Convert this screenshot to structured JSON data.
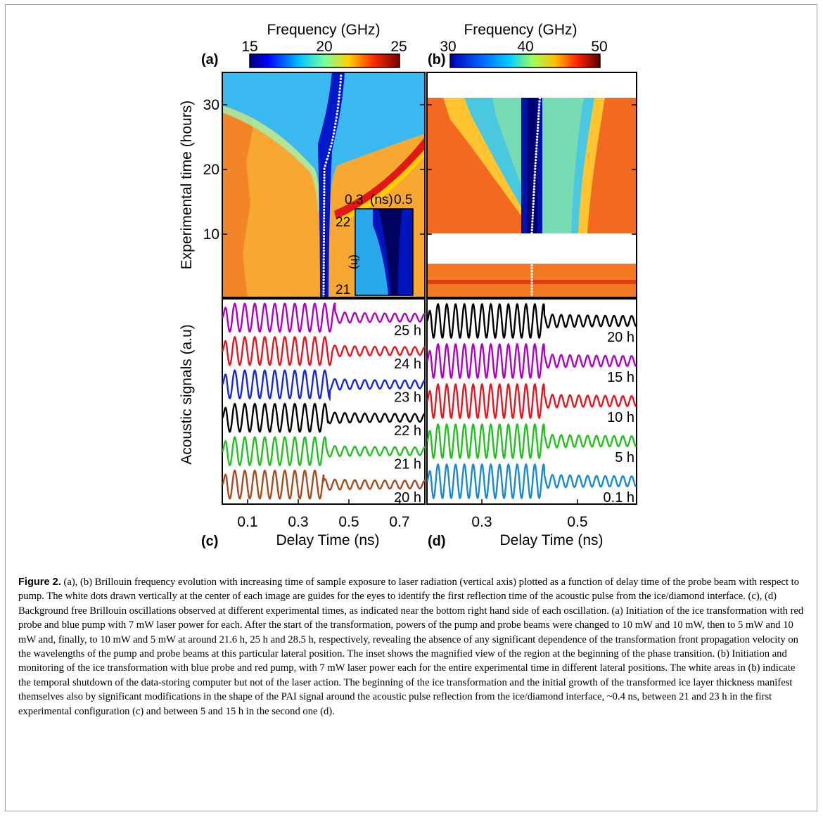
{
  "figure": {
    "number_label": "Figure 2.",
    "caption": "(a), (b) Brillouin frequency evolution with increasing time of sample exposure to laser radiation (vertical axis) plotted as a function of delay time of the probe beam with respect to pump. The white dots drawn vertically at the center of each image are guides for the eyes to identify the first reflection time of the acoustic pulse from the ice/diamond interface. (c), (d) Background free Brillouin oscillations observed at different experimental times, as indicated near the bottom right hand side of each oscillation. (a) Initiation of the ice transformation with red probe and blue pump with 7 mW laser power for each. After the start of the transformation, powers of the pump and probe beams were changed to 10 mW and 10 mW, then to 5 mW and 10 mW and, finally, to 10 mW and 5 mW at around 21.6 h, 25 h and 28.5 h, respectively, revealing the absence of any significant dependence of the transformation front propagation velocity on the wavelengths of the pump and probe beams at this particular lateral position. The inset shows the magnified view of the region at the beginning of the phase transition. (b) Initiation and monitoring of the ice transformation with blue probe and red pump, with 7 mW laser power each for the entire experimental time in different lateral positions. The white areas in (b) indicate the temporal shutdown of the data-storing computer but not of the laser action. The beginning of the ice transformation and the initial growth of the transformed ice layer thickness manifest themselves also by significant modifications in the shape of the PAI signal around the acoustic pulse reflection from the ice/diamond interface, ~0.4 ns, between 21 and 23 h in the first experimental configuration (c) and between 5 and 15 h in the second one (d)."
  },
  "chart_data": [
    {
      "panel": "(a)",
      "type": "heatmap",
      "colorbar": {
        "title": "Frequency (GHz)",
        "range": [
          15,
          25
        ],
        "ticks": [
          "15",
          "20",
          "25"
        ]
      },
      "ylabel": "Experimental time (hours)",
      "ylim": [
        0,
        35
      ],
      "yticks": [
        "10",
        "20",
        "30"
      ],
      "xlim": [
        0.0,
        0.8
      ],
      "front": {
        "time": [
          0,
          20,
          21,
          22,
          23,
          24,
          25,
          27,
          29,
          31,
          33,
          35
        ],
        "delay": [
          0.4,
          0.403,
          0.41,
          0.418,
          0.425,
          0.432,
          0.438,
          0.447,
          0.455,
          0.461,
          0.466,
          0.47
        ]
      },
      "inset": {
        "xticks": [
          "0.3",
          "(ns)",
          "0.5"
        ],
        "yticks": [
          "22",
          "21"
        ],
        "ylabel": "(h)"
      }
    },
    {
      "panel": "(b)",
      "type": "heatmap",
      "colorbar": {
        "title": "Frequency (GHz)",
        "range": [
          30,
          50
        ],
        "ticks": [
          "30",
          "40",
          "50"
        ]
      },
      "ylim": [
        0,
        35
      ],
      "xlim": [
        0.15,
        0.65
      ],
      "data_gaps_hours": [
        [
          5.5,
          8.5
        ],
        [
          31.5,
          35
        ]
      ],
      "front": {
        "time": [
          0,
          10,
          15,
          20,
          25,
          30,
          31.5
        ],
        "delay": [
          0.4,
          0.4,
          0.404,
          0.408,
          0.413,
          0.418,
          0.42
        ]
      }
    },
    {
      "panel": "(c)",
      "type": "line",
      "ylabel": "Acoustic signals (a.u)",
      "xlabel": "Delay Time (ns)",
      "xlim": [
        0.0,
        0.8
      ],
      "xticks": [
        "0.1",
        "0.3",
        "0.5",
        "0.7"
      ],
      "series": [
        {
          "name": "25 h",
          "color": "#b000c0",
          "period_ns": 0.0395,
          "reflection_ns": 0.445
        },
        {
          "name": "24 h",
          "color": "#e8141e",
          "period_ns": 0.0395,
          "reflection_ns": 0.435
        },
        {
          "name": "23 h",
          "color": "#1428d8",
          "period_ns": 0.0395,
          "reflection_ns": 0.425
        },
        {
          "name": "22 h",
          "color": "#000000",
          "period_ns": 0.0395,
          "reflection_ns": 0.418
        },
        {
          "name": "21 h",
          "color": "#22c020",
          "period_ns": 0.0395,
          "reflection_ns": 0.41
        },
        {
          "name": "20 h",
          "color": "#a84a1e",
          "period_ns": 0.0395,
          "reflection_ns": 0.4
        }
      ]
    },
    {
      "panel": "(d)",
      "type": "line",
      "xlabel": "Delay Time (ns)",
      "xlim": [
        0.15,
        0.65
      ],
      "xticks": [
        "0.3",
        "0.5"
      ],
      "series": [
        {
          "name": "20 h",
          "color": "#000000",
          "period_ns": 0.021,
          "reflection_ns": 0.43
        },
        {
          "name": "15 h",
          "color": "#b000c0",
          "period_ns": 0.021,
          "reflection_ns": 0.43
        },
        {
          "name": "10 h",
          "color": "#e8141e",
          "period_ns": 0.021,
          "reflection_ns": 0.43
        },
        {
          "name": "5 h",
          "color": "#22c020",
          "period_ns": 0.021,
          "reflection_ns": 0.43
        },
        {
          "name": "0.1 h",
          "color": "#1a8ad0",
          "period_ns": 0.021,
          "reflection_ns": 0.43
        }
      ]
    }
  ],
  "colors": {
    "caption_text": "#000000",
    "frame_border": "#9a9a9a"
  }
}
